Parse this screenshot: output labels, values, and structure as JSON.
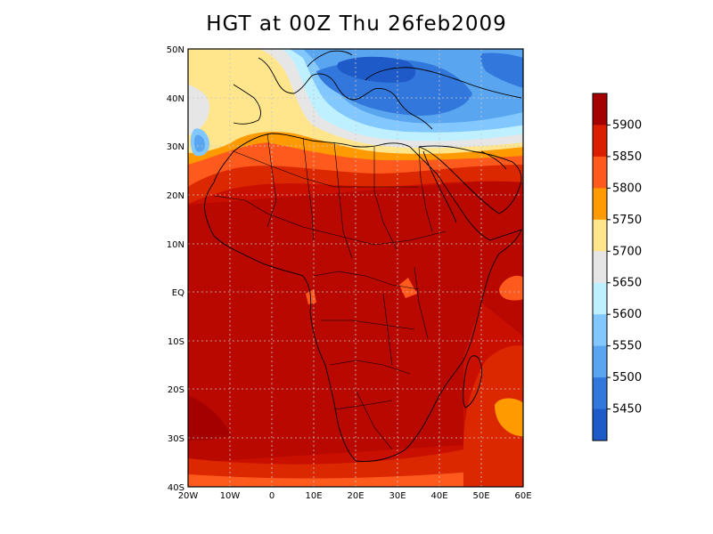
{
  "title": "HGT at 00Z Thu 26feb2009",
  "lat_labels": [
    "50N",
    "40N",
    "30N",
    "20N",
    "10N",
    "EQ",
    "10S",
    "20S",
    "30S",
    "40S"
  ],
  "lon_labels": [
    "20W",
    "10W",
    "0",
    "10E",
    "20E",
    "30E",
    "40E",
    "50E",
    "60E"
  ],
  "colorbar": {
    "labels": [
      "5900",
      "5850",
      "5800",
      "5750",
      "5700",
      "5650",
      "5600",
      "5550",
      "5500",
      "5450"
    ],
    "colors": [
      "#a50000",
      "#dc1e00",
      "#ff5a1e",
      "#ff9a00",
      "#ffe68c",
      "#e6e6e6",
      "#bef0ff",
      "#82c8ff",
      "#5aa5f0",
      "#3278dc",
      "#1e5ac8"
    ]
  },
  "colors": {
    "c5950": "#a50000",
    "c5900": "#c80f00",
    "c5850": "#dc2800",
    "c5800": "#ff5a1e",
    "c5750": "#ff9a00",
    "c5700": "#ffe68c",
    "c5650": "#e6e6e6",
    "c5600": "#bef0ff",
    "c5550": "#82c8ff",
    "c5500": "#5aa5f0",
    "c5450": "#3278dc"
  }
}
